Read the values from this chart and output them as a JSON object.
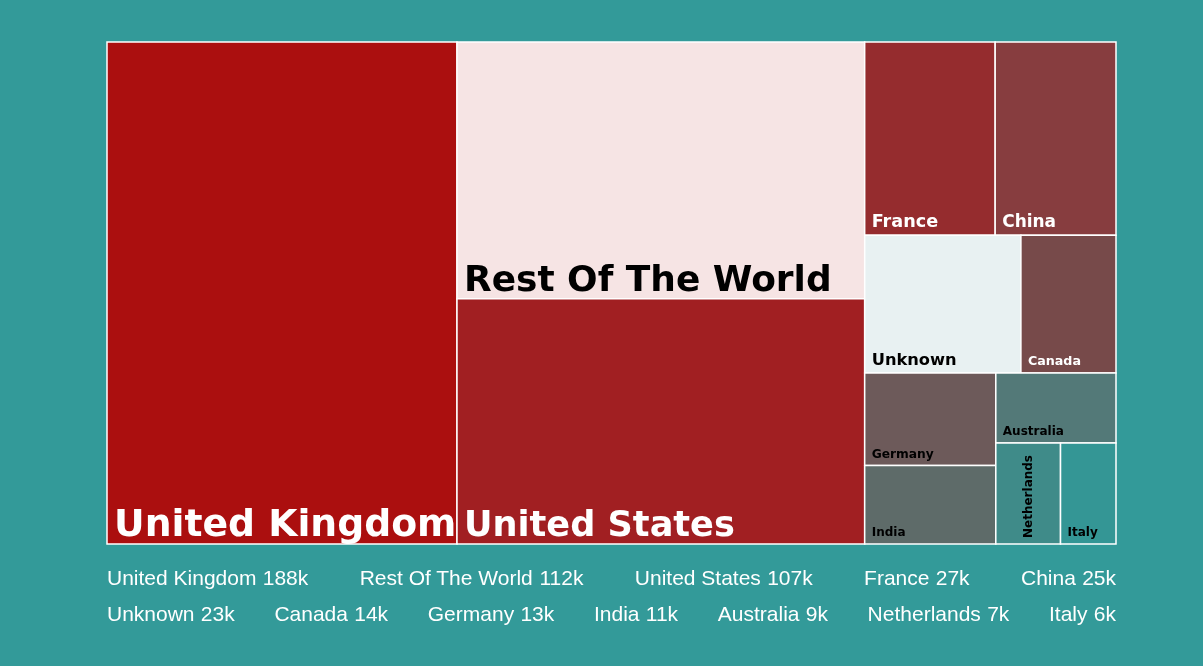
{
  "chart_data": {
    "type": "other",
    "categories": [
      "United Kingdom",
      "Rest Of The World",
      "United States",
      "France",
      "China",
      "Unknown",
      "Canada",
      "Germany",
      "India",
      "Australia",
      "Netherlands",
      "Italy"
    ],
    "values": [
      188,
      112,
      107,
      27,
      25,
      23,
      14,
      13,
      11,
      9,
      7,
      6
    ],
    "value_labels": [
      "188k",
      "112k",
      "107k",
      "27k",
      "25k",
      "23k",
      "14k",
      "13k",
      "11k",
      "9k",
      "7k",
      "6k"
    ],
    "colors": [
      "#ab0f0f",
      "#f6e4e4",
      "#a11f22",
      "#952c2e",
      "#873d3f",
      "#e8f1f2",
      "#774a4a",
      "#6d5a5a",
      "#5e6b69",
      "#537978",
      "#3f8b89",
      "#349695"
    ]
  }
}
